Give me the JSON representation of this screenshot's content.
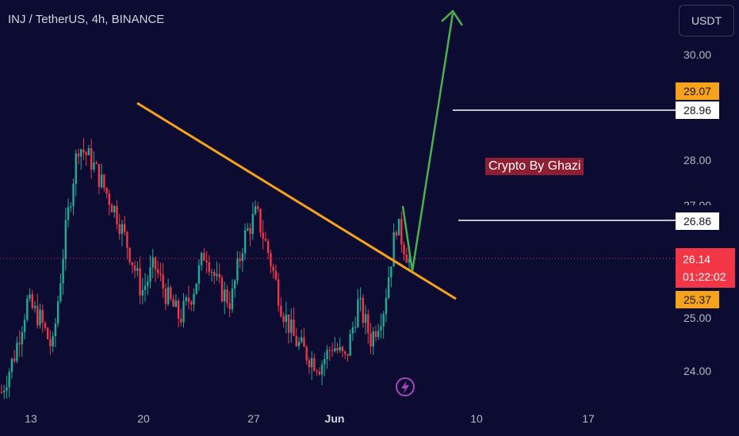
{
  "header": {
    "title": "INJ / TetherUS, 4h, BINANCE"
  },
  "currency_button": {
    "label": "USDT"
  },
  "watermark": {
    "text": "Crypto By Ghazi"
  },
  "price_axis": {
    "ticks": [
      "30.00",
      "28.00",
      "25.00",
      "24.00"
    ],
    "partial_tick": "27.00",
    "target_high_orange": "29.07",
    "target_high_white": "28.96",
    "level_mid_white": "26.86",
    "current_price": "26.14",
    "countdown": "01:22:02",
    "support_orange": "25.37"
  },
  "time_axis": {
    "labels": [
      "13",
      "20",
      "27",
      "Jun",
      "10",
      "17"
    ]
  },
  "colors": {
    "background": "#0c0c32",
    "bull": "#22ab94",
    "bear": "#f23645",
    "trendline": "#f7a21b",
    "projection": "#4caf50",
    "resistance": "#ffffff"
  },
  "chart_data": {
    "type": "candlestick",
    "symbol": "INJ / TetherUS",
    "interval": "4h",
    "exchange": "BINANCE",
    "ylim": [
      23.5,
      30.5
    ],
    "y_ticks": [
      24.0,
      25.0,
      28.0,
      30.0
    ],
    "x_ticks": [
      "13",
      "20",
      "27",
      "Jun",
      "10",
      "17"
    ],
    "current_price": 26.14,
    "horizontal_levels": [
      28.96,
      26.86
    ],
    "axis_markers": [
      29.07,
      28.96,
      26.86,
      26.14,
      25.37
    ],
    "descending_trendline": {
      "start": 29.1,
      "end": 25.35
    },
    "path_waypoints_close": [
      23.6,
      24.3,
      25.3,
      25.0,
      24.4,
      26.6,
      28.3,
      28.0,
      27.5,
      27.0,
      26.3,
      25.5,
      26.0,
      25.4,
      25.0,
      25.5,
      26.3,
      25.6,
      25.3,
      26.5,
      27.0,
      26.2,
      25.2,
      24.6,
      24.3,
      24.1,
      24.5,
      24.2,
      25.3,
      24.6,
      25.2,
      26.8,
      26.1
    ],
    "projection_path": [
      27.0,
      26.1,
      30.8
    ]
  }
}
